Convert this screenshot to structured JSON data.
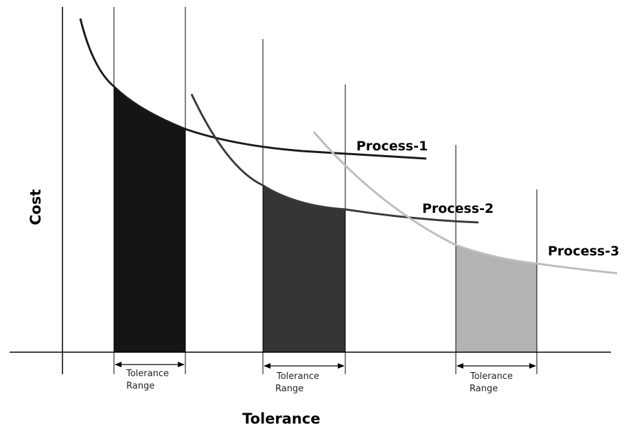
{
  "axes": {
    "x_title": "Tolerance",
    "y_title": "Cost"
  },
  "processes": [
    {
      "label": "Process-1",
      "color": "#1a1a1a",
      "fill": "#151515"
    },
    {
      "label": "Process-2",
      "color": "#3a3a3a",
      "fill": "#353535"
    },
    {
      "label": "Process-3",
      "color": "#bdbdbd",
      "fill": "#b3b3b3"
    }
  ],
  "tolerance_range": {
    "line1": "Tolerance",
    "line2": "Range"
  }
}
